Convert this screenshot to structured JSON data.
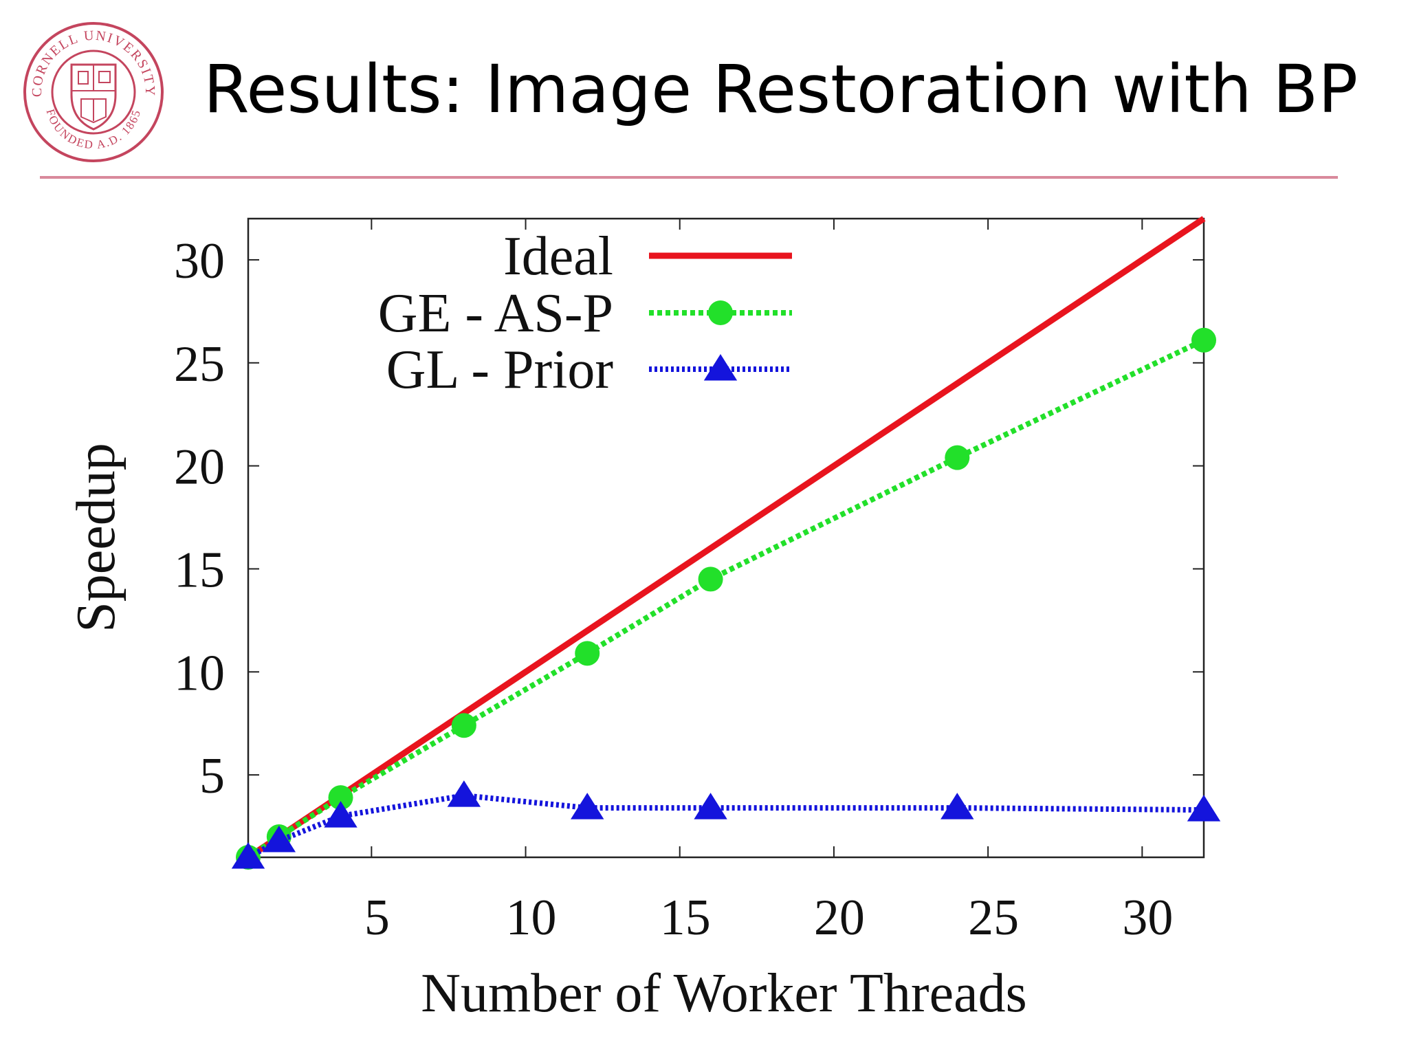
{
  "slide": {
    "title": "Results: Image Restoration with BP",
    "accent_color": "#d98a9c",
    "logo": {
      "icon": "cornell-university-seal-icon",
      "text": "CORNELL UNIVERSITY FOUNDED A.D. 1865",
      "color": "#c4455e"
    }
  },
  "chart_data": {
    "type": "line",
    "title": "",
    "xlabel": "Number of Worker Threads",
    "ylabel": "Speedup",
    "xlim": [
      1,
      32
    ],
    "ylim": [
      1,
      32
    ],
    "xticks": [
      5,
      10,
      15,
      20,
      25,
      30
    ],
    "yticks": [
      5,
      10,
      15,
      20,
      25,
      30
    ],
    "grid": false,
    "legend_position": "top-left",
    "series": [
      {
        "name": "Ideal",
        "color": "#e8141e",
        "style": "solid",
        "marker": "none",
        "x": [
          1,
          32
        ],
        "y": [
          1,
          32
        ]
      },
      {
        "name": "GE - AS-P",
        "color": "#22e02a",
        "style": "dotted",
        "marker": "circle",
        "x": [
          1,
          2,
          4,
          8,
          12,
          16,
          24,
          32
        ],
        "y": [
          1.0,
          2.0,
          3.9,
          7.4,
          10.9,
          14.5,
          20.4,
          26.1
        ]
      },
      {
        "name": "GL - Prior",
        "color": "#1414dc",
        "style": "dotted",
        "marker": "triangle",
        "x": [
          1,
          2,
          4,
          8,
          12,
          16,
          24,
          32
        ],
        "y": [
          1.0,
          1.8,
          3.0,
          4.0,
          3.4,
          3.4,
          3.4,
          3.3
        ]
      }
    ]
  }
}
